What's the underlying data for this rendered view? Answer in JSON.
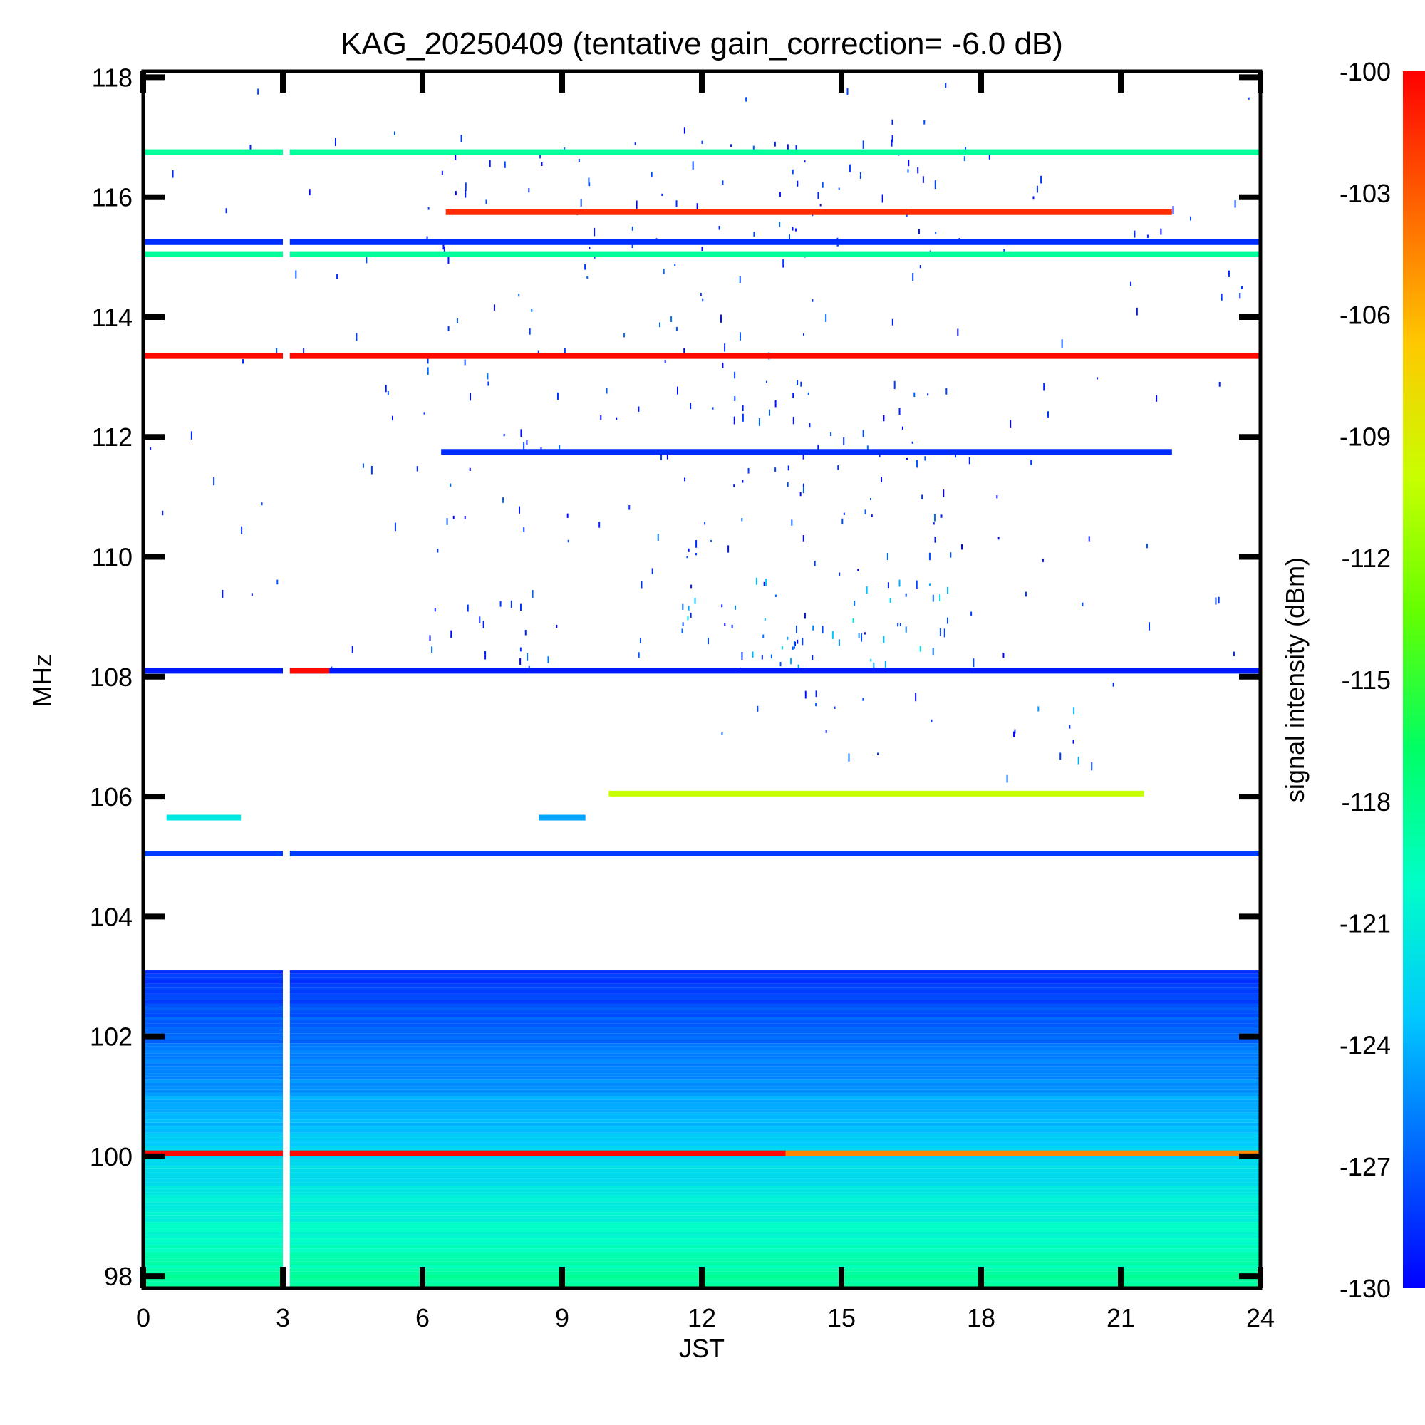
{
  "chart_data": {
    "type": "heatmap",
    "title": "KAG_20250409 (tentative gain_correction= -6.0 dB)",
    "xlabel": "JST",
    "ylabel": "MHz",
    "colorbar_label": "signal intensity (dBm)",
    "xlim": [
      0,
      24
    ],
    "ylim": [
      97.8,
      118.1
    ],
    "x_ticks": [
      0,
      3,
      6,
      9,
      12,
      15,
      18,
      21,
      24
    ],
    "y_ticks": [
      98,
      100,
      102,
      104,
      106,
      108,
      110,
      112,
      114,
      116,
      118
    ],
    "colorbar_range": [
      -130,
      -100
    ],
    "colorbar_ticks": [
      -130,
      -127,
      -124,
      -121,
      -118,
      -115,
      -112,
      -109,
      -106,
      -103,
      -100
    ],
    "colormap": [
      "#0000ff",
      "#0064ff",
      "#00c8ff",
      "#00ffc8",
      "#00ff64",
      "#64ff00",
      "#c8ff00",
      "#ffc800",
      "#ff6400",
      "#ff0000"
    ],
    "grid": false,
    "data_gaps": [
      {
        "x_start": 3.0,
        "x_end": 3.15
      }
    ],
    "background_band": {
      "y_from": 97.8,
      "y_to": 103.1,
      "dbm_at_bottom": -118.5,
      "dbm_at_top": -128.5
    },
    "carriers": [
      {
        "freq_mhz": 116.75,
        "x_start": 0,
        "x_end": 24,
        "dbm": -118.5
      },
      {
        "freq_mhz": 115.75,
        "x_start": 6.5,
        "x_end": 22.1,
        "dbm": -101.5
      },
      {
        "freq_mhz": 115.25,
        "x_start": 0,
        "x_end": 24,
        "dbm": -128.5
      },
      {
        "freq_mhz": 115.05,
        "x_start": 0,
        "x_end": 24,
        "dbm": -118.5
      },
      {
        "freq_mhz": 113.35,
        "x_start": 0,
        "x_end": 24,
        "dbm": -100.3
      },
      {
        "freq_mhz": 111.75,
        "x_start": 6.4,
        "x_end": 22.1,
        "dbm": -128.5
      },
      {
        "freq_mhz": 108.1,
        "x_start": 0,
        "x_end": 24,
        "dbm": -129.2
      },
      {
        "freq_mhz": 108.1,
        "x_start": 3.0,
        "x_end": 4.0,
        "dbm": -100.3
      },
      {
        "freq_mhz": 105.65,
        "x_start": 0.5,
        "x_end": 2.1,
        "dbm": -121.5
      },
      {
        "freq_mhz": 105.65,
        "x_start": 8.5,
        "x_end": 9.5,
        "dbm": -124.5
      },
      {
        "freq_mhz": 105.05,
        "x_start": 0,
        "x_end": 24,
        "dbm": -128.0
      },
      {
        "freq_mhz": 106.05,
        "x_start": 10.0,
        "x_end": 21.5,
        "dbm": -110.0
      },
      {
        "freq_mhz": 100.05,
        "x_start": 0,
        "x_end": 13.8,
        "dbm": -100.3
      },
      {
        "freq_mhz": 100.05,
        "x_start": 13.8,
        "x_end": 24,
        "dbm": -104.5
      }
    ],
    "activity_regions": [
      {
        "x": [
          0,
          24
        ],
        "y": [
          108.1,
          118.0
        ],
        "density": 0.05,
        "dbm": [
          -130,
          -127
        ]
      },
      {
        "x": [
          6,
          18
        ],
        "y": [
          108.1,
          117.2
        ],
        "density": 0.12,
        "dbm": [
          -130,
          -126
        ]
      },
      {
        "x": [
          11,
          17.3
        ],
        "y": [
          108.2,
          109.8
        ],
        "density": 0.4,
        "dbm": [
          -130,
          -122
        ]
      },
      {
        "x": [
          12,
          17
        ],
        "y": [
          111.0,
          113.0
        ],
        "density": 0.2,
        "dbm": [
          -130,
          -127
        ]
      },
      {
        "x": [
          8,
          17
        ],
        "y": [
          115.3,
          117.0
        ],
        "density": 0.18,
        "dbm": [
          -130,
          -127
        ]
      },
      {
        "x": [
          11.8,
          17.2
        ],
        "y": [
          106.7,
          107.9
        ],
        "density": 0.15,
        "dbm": [
          -130,
          -125
        ]
      },
      {
        "x": [
          18.5,
          21
        ],
        "y": [
          106.2,
          108.0
        ],
        "density": 0.2,
        "dbm": [
          -130,
          -124
        ]
      }
    ]
  }
}
